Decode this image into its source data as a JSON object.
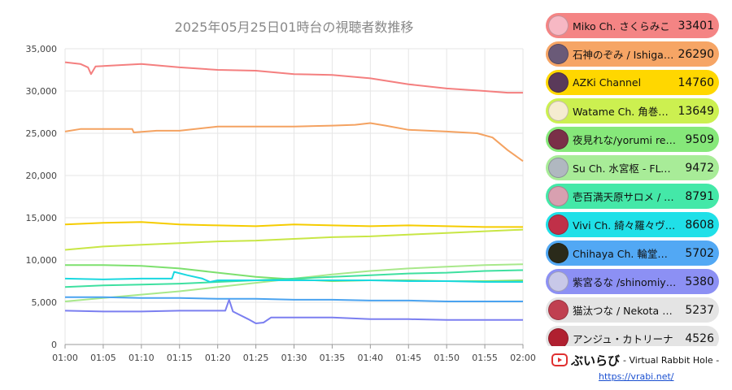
{
  "chart_data": {
    "type": "line",
    "title": "2025年05月25日01時台の視聴者数推移",
    "x_ticks": [
      "01:00",
      "01:05",
      "01:10",
      "01:15",
      "01:20",
      "01:25",
      "01:30",
      "01:35",
      "01:40",
      "01:45",
      "01:50",
      "01:55",
      "02:00"
    ],
    "y_ticks": [
      "0",
      "5,000",
      "10,000",
      "15,000",
      "20,000",
      "25,000",
      "30,000",
      "35,000"
    ],
    "xlim": [
      0,
      60
    ],
    "ylim": [
      0,
      35000
    ],
    "grid": true,
    "series": [
      {
        "name": "Miko Ch. さくらみこ",
        "color": "#f47f7f",
        "points": [
          [
            0,
            33400
          ],
          [
            2,
            33200
          ],
          [
            3,
            32800
          ],
          [
            3.4,
            32000
          ],
          [
            4,
            32900
          ],
          [
            6,
            33000
          ],
          [
            10,
            33200
          ],
          [
            15,
            32800
          ],
          [
            20,
            32500
          ],
          [
            25,
            32400
          ],
          [
            30,
            32000
          ],
          [
            35,
            31900
          ],
          [
            40,
            31500
          ],
          [
            45,
            30800
          ],
          [
            50,
            30300
          ],
          [
            55,
            30000
          ],
          [
            58,
            29800
          ],
          [
            60,
            29800
          ]
        ]
      },
      {
        "name": "石神のぞみ / Ishigami Nozomi",
        "color": "#f4a261",
        "points": [
          [
            0,
            25200
          ],
          [
            2,
            25500
          ],
          [
            5,
            25500
          ],
          [
            8.8,
            25500
          ],
          [
            9,
            25100
          ],
          [
            12,
            25300
          ],
          [
            15,
            25300
          ],
          [
            20,
            25800
          ],
          [
            25,
            25800
          ],
          [
            30,
            25800
          ],
          [
            35,
            25900
          ],
          [
            38,
            26000
          ],
          [
            40,
            26200
          ],
          [
            42,
            25900
          ],
          [
            45,
            25400
          ],
          [
            50,
            25200
          ],
          [
            54,
            25000
          ],
          [
            56,
            24500
          ],
          [
            58,
            23000
          ],
          [
            60,
            21700
          ]
        ]
      },
      {
        "name": "AZKi Channel",
        "color": "#f5cc00",
        "points": [
          [
            0,
            14200
          ],
          [
            5,
            14400
          ],
          [
            10,
            14500
          ],
          [
            15,
            14200
          ],
          [
            20,
            14100
          ],
          [
            25,
            14000
          ],
          [
            30,
            14200
          ],
          [
            35,
            14100
          ],
          [
            40,
            14000
          ],
          [
            45,
            14100
          ],
          [
            50,
            14000
          ],
          [
            55,
            13900
          ],
          [
            60,
            13900
          ]
        ]
      },
      {
        "name": "Watame Ch. 角巻わため",
        "color": "#c8e645",
        "points": [
          [
            0,
            11200
          ],
          [
            5,
            11600
          ],
          [
            10,
            11800
          ],
          [
            15,
            12000
          ],
          [
            20,
            12200
          ],
          [
            25,
            12300
          ],
          [
            30,
            12500
          ],
          [
            35,
            12700
          ],
          [
            40,
            12800
          ],
          [
            45,
            13000
          ],
          [
            50,
            13200
          ],
          [
            55,
            13400
          ],
          [
            60,
            13600
          ]
        ]
      },
      {
        "name": "夜見れな/yorumi rena",
        "color": "#7de06e",
        "points": [
          [
            0,
            9400
          ],
          [
            5,
            9400
          ],
          [
            10,
            9300
          ],
          [
            15,
            9000
          ],
          [
            20,
            8500
          ],
          [
            25,
            8000
          ],
          [
            30,
            7700
          ],
          [
            35,
            7500
          ],
          [
            40,
            7600
          ],
          [
            45,
            7600
          ],
          [
            50,
            7500
          ],
          [
            55,
            7500
          ],
          [
            60,
            7600
          ]
        ]
      },
      {
        "name": "Su Ch. 水宮枢 - FLOW GLOW",
        "color": "#a8e88a",
        "points": [
          [
            0,
            5100
          ],
          [
            5,
            5500
          ],
          [
            10,
            5900
          ],
          [
            15,
            6300
          ],
          [
            20,
            6800
          ],
          [
            25,
            7300
          ],
          [
            30,
            7800
          ],
          [
            35,
            8300
          ],
          [
            40,
            8700
          ],
          [
            45,
            9000
          ],
          [
            50,
            9200
          ],
          [
            55,
            9400
          ],
          [
            60,
            9500
          ]
        ]
      },
      {
        "name": "壱百満天原サロメ / Hyakumantenbara Salome",
        "color": "#3ee0a0",
        "points": [
          [
            0,
            6800
          ],
          [
            5,
            7000
          ],
          [
            10,
            7100
          ],
          [
            15,
            7200
          ],
          [
            20,
            7400
          ],
          [
            25,
            7600
          ],
          [
            30,
            7800
          ],
          [
            35,
            8000
          ],
          [
            40,
            8200
          ],
          [
            45,
            8400
          ],
          [
            50,
            8500
          ],
          [
            55,
            8700
          ],
          [
            60,
            8800
          ]
        ]
      },
      {
        "name": "Vivi Ch. 綺々羅々ヴィヴィ",
        "color": "#1ad8e0",
        "points": [
          [
            0,
            7800
          ],
          [
            5,
            7700
          ],
          [
            10,
            7800
          ],
          [
            14,
            7800
          ],
          [
            14.3,
            8600
          ],
          [
            16,
            8200
          ],
          [
            18,
            7800
          ],
          [
            19,
            7400
          ],
          [
            20,
            7600
          ],
          [
            25,
            7600
          ],
          [
            30,
            7600
          ],
          [
            35,
            7600
          ],
          [
            40,
            7600
          ],
          [
            45,
            7500
          ],
          [
            50,
            7500
          ],
          [
            55,
            7400
          ],
          [
            60,
            7400
          ]
        ]
      },
      {
        "name": "Chihaya Ch. 輪堂千速",
        "color": "#4aa3f0",
        "points": [
          [
            0,
            5600
          ],
          [
            5,
            5600
          ],
          [
            10,
            5500
          ],
          [
            15,
            5500
          ],
          [
            20,
            5400
          ],
          [
            25,
            5400
          ],
          [
            30,
            5300
          ],
          [
            35,
            5300
          ],
          [
            40,
            5200
          ],
          [
            45,
            5200
          ],
          [
            50,
            5100
          ],
          [
            55,
            5100
          ],
          [
            60,
            5100
          ]
        ]
      },
      {
        "name": "紫宮るな /shinomiya runa",
        "color": "#7b7ff0",
        "points": [
          [
            0,
            4000
          ],
          [
            5,
            3900
          ],
          [
            10,
            3900
          ],
          [
            15,
            4000
          ],
          [
            21,
            4000
          ],
          [
            21.5,
            5300
          ],
          [
            22,
            3900
          ],
          [
            24,
            3000
          ],
          [
            25,
            2500
          ],
          [
            26,
            2600
          ],
          [
            27,
            3200
          ],
          [
            30,
            3200
          ],
          [
            35,
            3200
          ],
          [
            40,
            3000
          ],
          [
            45,
            3000
          ],
          [
            50,
            2900
          ],
          [
            55,
            2900
          ],
          [
            60,
            2900
          ]
        ]
      }
    ],
    "legend": [
      {
        "name": "Miko Ch. さくらみこ",
        "value": "33401",
        "bg": "#f48484",
        "avatar": "#f7b8c4"
      },
      {
        "name": "石神のぞみ / Ishigami Nozomi",
        "value": "26290",
        "bg": "#f6a565",
        "avatar": "#6a5a78"
      },
      {
        "name": "AZKi Channel",
        "value": "14760",
        "bg": "#ffd700",
        "avatar": "#5a3a5a"
      },
      {
        "name": "Watame Ch. 角巻わため",
        "value": "13649",
        "bg": "#ccf050",
        "avatar": "#f5ecd0"
      },
      {
        "name": "夜見れな/yorumi rena",
        "value": "9509",
        "bg": "#86e87a",
        "avatar": "#7a3048"
      },
      {
        "name": "Su Ch. 水宮枢 - FLOW GLOW",
        "value": "9472",
        "bg": "#a8ec98",
        "avatar": "#b0b8c0"
      },
      {
        "name": "壱百満天原サロメ / Hyakumantenbara Salome",
        "value": "8791",
        "bg": "#44e8a8",
        "avatar": "#d8a0b0"
      },
      {
        "name": "Vivi Ch. 綺々羅々ヴィヴィ",
        "value": "8608",
        "bg": "#20e0e8",
        "avatar": "#c03048"
      },
      {
        "name": "Chihaya Ch. 輪堂千速",
        "value": "5702",
        "bg": "#52a8f4",
        "avatar": "#2a2a1a"
      },
      {
        "name": "紫宮るな /shinomiya runa",
        "value": "5380",
        "bg": "#8c90f4",
        "avatar": "#c8c8e8"
      },
      {
        "name": "猫汰つな / Nekota Tsuna",
        "value": "5237",
        "bg": "#e4e4e4",
        "avatar": "#c04050"
      },
      {
        "name": "アンジュ・カトリーナ",
        "value": "4526",
        "bg": "#e4e4e4",
        "avatar": "#b02030"
      }
    ]
  },
  "footer": {
    "brand": "ぶいらび",
    "subtitle": "- Virtual Rabbit Hole -",
    "url": "https://vrabi.net/",
    "logo_color": "#e03030"
  }
}
